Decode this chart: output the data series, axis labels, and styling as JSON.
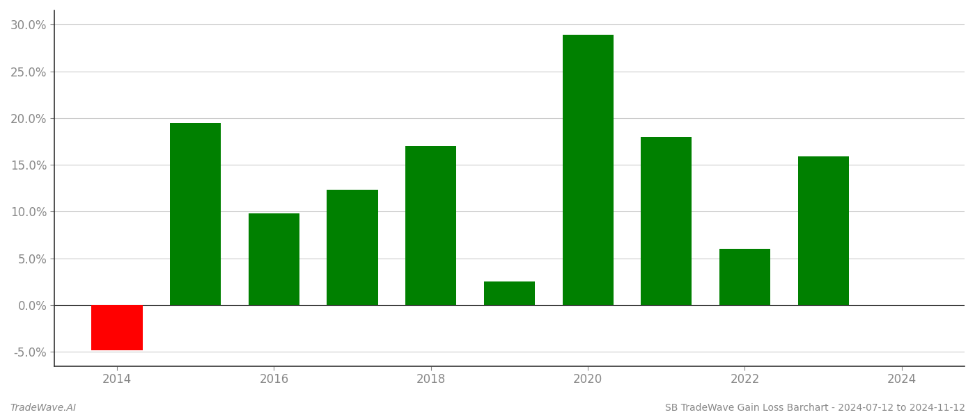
{
  "years": [
    2014,
    2015,
    2016,
    2017,
    2018,
    2019,
    2020,
    2021,
    2022,
    2023
  ],
  "values": [
    -0.048,
    0.195,
    0.098,
    0.123,
    0.17,
    0.025,
    0.289,
    0.18,
    0.06,
    0.159
  ],
  "colors": [
    "#ff0000",
    "#008000",
    "#008000",
    "#008000",
    "#008000",
    "#008000",
    "#008000",
    "#008000",
    "#008000",
    "#008000"
  ],
  "ylim": [
    -0.065,
    0.315
  ],
  "yticks": [
    -0.05,
    0.0,
    0.05,
    0.1,
    0.15,
    0.2,
    0.25,
    0.3
  ],
  "xticks": [
    2014,
    2016,
    2018,
    2020,
    2022,
    2024
  ],
  "xlim": [
    2013.2,
    2024.8
  ],
  "footer_left": "TradeWave.AI",
  "footer_right": "SB TradeWave Gain Loss Barchart - 2024-07-12 to 2024-11-12",
  "bar_width": 0.65,
  "background_color": "#ffffff",
  "grid_color": "#cccccc",
  "spine_color": "#333333",
  "tick_color": "#888888",
  "footer_font_size": 10,
  "tick_font_size": 12
}
